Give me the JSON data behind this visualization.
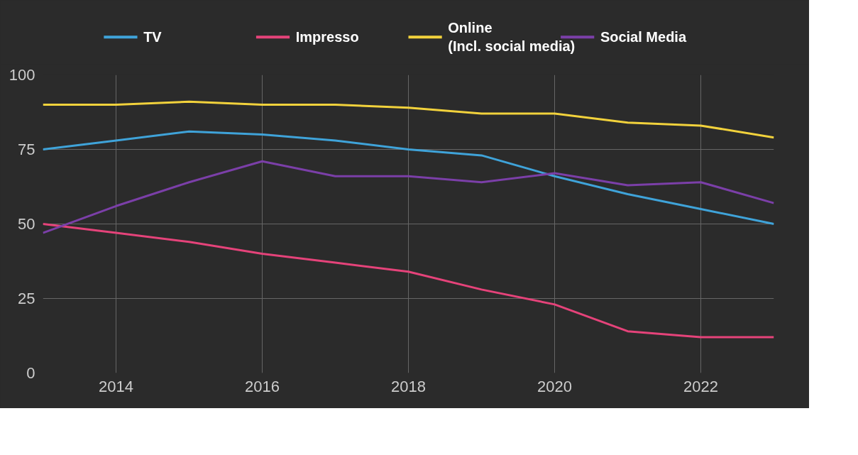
{
  "chart_data": {
    "type": "line",
    "x": [
      2013,
      2014,
      2015,
      2016,
      2017,
      2018,
      2019,
      2020,
      2021,
      2022,
      2023
    ],
    "series": [
      {
        "name": "TV",
        "color": "#3fa3d9",
        "values": [
          75,
          78,
          81,
          80,
          78,
          75,
          73,
          66,
          60,
          55,
          50
        ]
      },
      {
        "name": "Impresso",
        "color": "#e5437a",
        "values": [
          50,
          47,
          44,
          40,
          37,
          34,
          28,
          23,
          14,
          12,
          12
        ]
      },
      {
        "name": "Online\n(Incl. social media)",
        "color": "#f2d23c",
        "values": [
          90,
          90,
          91,
          90,
          90,
          89,
          87,
          87,
          84,
          83,
          79
        ]
      },
      {
        "name": "Social Media",
        "color": "#7b3fa8",
        "values": [
          47,
          56,
          64,
          71,
          66,
          66,
          64,
          67,
          63,
          64,
          57
        ]
      }
    ],
    "xlim": [
      2013,
      2023
    ],
    "ylim": [
      0,
      100
    ],
    "xticks": [
      2014,
      2016,
      2018,
      2020,
      2022
    ],
    "yticks": [
      0,
      25,
      50,
      75,
      100
    ],
    "grid": true,
    "legend": "top",
    "line_style": "solid",
    "marker": "none"
  }
}
